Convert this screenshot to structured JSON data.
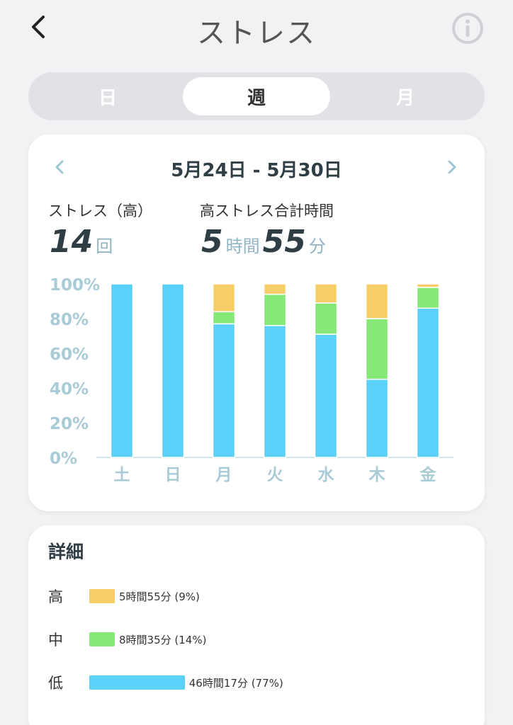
{
  "header": {
    "title": "ストレス",
    "back_icon": "chevron-left-icon",
    "info_icon": "info-icon"
  },
  "tabs": [
    {
      "label": "日",
      "active": false
    },
    {
      "label": "週",
      "active": true
    },
    {
      "label": "月",
      "active": false
    }
  ],
  "summary": {
    "date_range": "5月24日 - 5月30日",
    "high_count_label": "ストレス（高）",
    "high_count_value": "14",
    "high_count_unit": "回",
    "high_time_label": "高ストレス合計時間",
    "high_time_hours": "5",
    "high_time_hours_unit": "時間",
    "high_time_minutes": "55",
    "high_time_minutes_unit": "分"
  },
  "colors": {
    "high": "#f6cd67",
    "medium": "#86e877",
    "low": "#5bd0f8",
    "axis": "#a9cbd6"
  },
  "chart_data": {
    "type": "bar",
    "stacked": true,
    "categories": [
      "土",
      "日",
      "月",
      "火",
      "水",
      "木",
      "金"
    ],
    "y_ticks": [
      "100%",
      "80%",
      "60%",
      "40%",
      "20%",
      "0%"
    ],
    "ylim": [
      0,
      100
    ],
    "series": [
      {
        "key": "low",
        "values": [
          100,
          100,
          77,
          76,
          71,
          45,
          86
        ]
      },
      {
        "key": "medium",
        "values": [
          0,
          0,
          7,
          18,
          18,
          35,
          12
        ]
      },
      {
        "key": "high",
        "values": [
          0,
          0,
          16,
          6,
          11,
          20,
          2
        ]
      }
    ]
  },
  "details": {
    "title": "詳細",
    "rows": [
      {
        "label": "高",
        "text": "5時間55分 (9%)",
        "percent": 9,
        "color_key": "high"
      },
      {
        "label": "中",
        "text": "8時間35分 (14%)",
        "percent": 14,
        "color_key": "medium"
      },
      {
        "label": "低",
        "text": "46時間17分 (77%)",
        "percent": 77,
        "color_key": "low"
      }
    ]
  }
}
